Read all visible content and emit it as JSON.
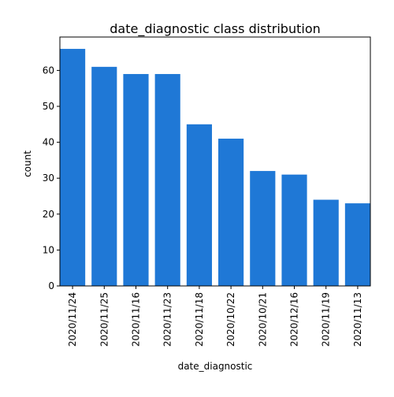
{
  "chart_data": {
    "type": "bar",
    "title": "date_diagnostic class distribution",
    "xlabel": "date_diagnostic",
    "ylabel": "count",
    "categories": [
      "2020/11/24",
      "2020/11/25",
      "2020/11/16",
      "2020/11/23",
      "2020/11/18",
      "2020/10/22",
      "2020/10/21",
      "2020/12/16",
      "2020/11/19",
      "2020/11/13"
    ],
    "values": [
      66,
      61,
      59,
      59,
      45,
      41,
      32,
      31,
      24,
      23
    ],
    "yticks": [
      0,
      10,
      20,
      30,
      40,
      50,
      60
    ],
    "ylim": [
      0,
      69.3
    ],
    "grid": false,
    "bar_color": "#1f78d6"
  }
}
